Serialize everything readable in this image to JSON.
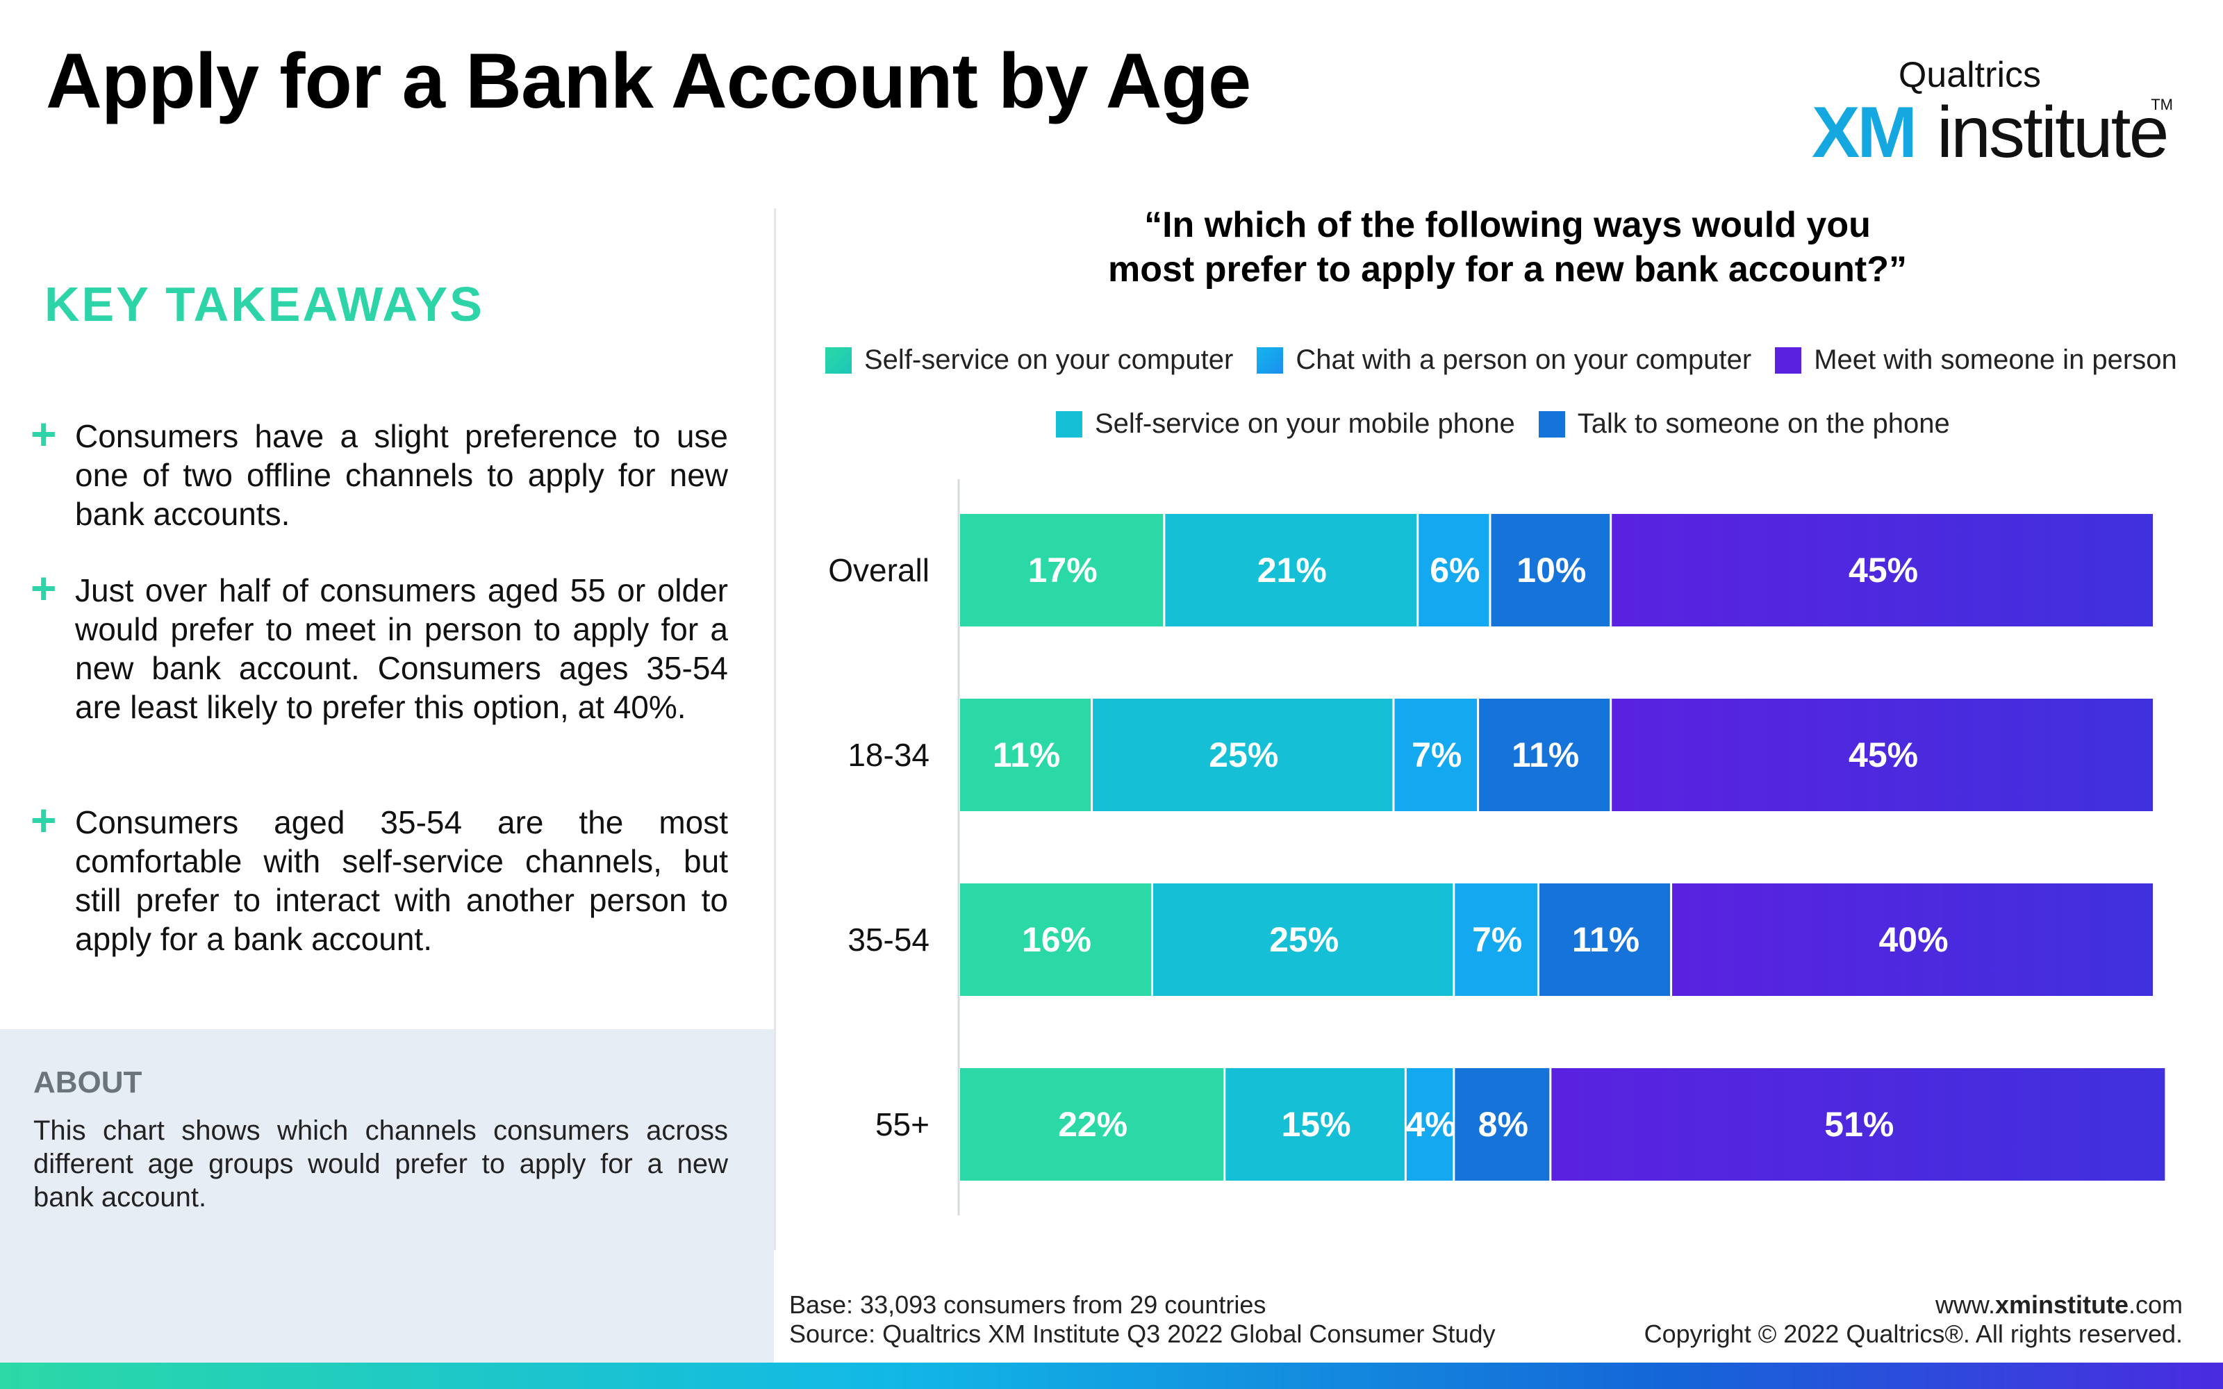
{
  "header": {
    "title": "Apply for a Bank Account by Age",
    "logo_brand": "Qualtrics",
    "logo_xm": "XM",
    "logo_institute": "institute",
    "logo_tm": "TM"
  },
  "takeaways": {
    "title": "KEY TAKEAWAYS",
    "plus_symbol": "+",
    "items": [
      "Consumers have a slight preference to use one of two offline channels to apply for new bank accounts.",
      "Just over half of consumers aged 55 or older would prefer to meet in person to apply for a new bank account. Consumers ages 35-54 are least likely to prefer this option, at 40%.",
      "Consumers aged 35-54 are the most comfortable with self-service channels, but still prefer to interact with another person to apply for a bank account."
    ]
  },
  "about": {
    "title": "ABOUT",
    "text": "This chart shows which channels consumers across different age groups would prefer to apply for a new bank account."
  },
  "chart_data": {
    "type": "bar",
    "orientation": "horizontal-stacked-100",
    "title": "“In which of the following ways would you most prefer to apply for a new bank account?”",
    "title_lines": [
      "“In which of the following ways would you",
      "most prefer to apply for a new bank account?”"
    ],
    "categories": [
      "Overall",
      "18-34",
      "35-54",
      "55+"
    ],
    "series": [
      {
        "name": "Self-service on your computer",
        "color": "#2bd9a6",
        "values": [
          17,
          11,
          16,
          22
        ]
      },
      {
        "name": "Chat with a person on your computer",
        "color": "#15c0d6",
        "values": [
          21,
          25,
          25,
          15
        ]
      },
      {
        "name": "Self-service on your mobile phone",
        "color": "#13a8ef",
        "values": [
          6,
          7,
          7,
          4
        ]
      },
      {
        "name": "Talk to someone on the phone",
        "color": "#1673d9",
        "values": [
          10,
          11,
          11,
          8
        ]
      },
      {
        "name": "Meet with someone in person",
        "color": "#4a2be0",
        "values": [
          45,
          45,
          40,
          51
        ]
      }
    ],
    "legend_rows": [
      [
        "Self-service on your computer",
        "Chat with a person on your computer",
        "Meet with someone in person"
      ],
      [
        "Self-service on your mobile phone",
        "Talk to someone on the phone"
      ]
    ],
    "value_suffix": "%",
    "xlim": [
      0,
      99
    ],
    "legend_position": "top",
    "grid": false
  },
  "footer": {
    "base": "Base: 33,093 consumers from 29 countries",
    "source": "Source: Qualtrics XM Institute Q3 2022 Global Consumer Study",
    "website_prefix": "www.",
    "website_bold": "xminstitute",
    "website_suffix": ".com",
    "copyright": "Copyright © 2022 Qualtrics®. All rights reserved."
  }
}
